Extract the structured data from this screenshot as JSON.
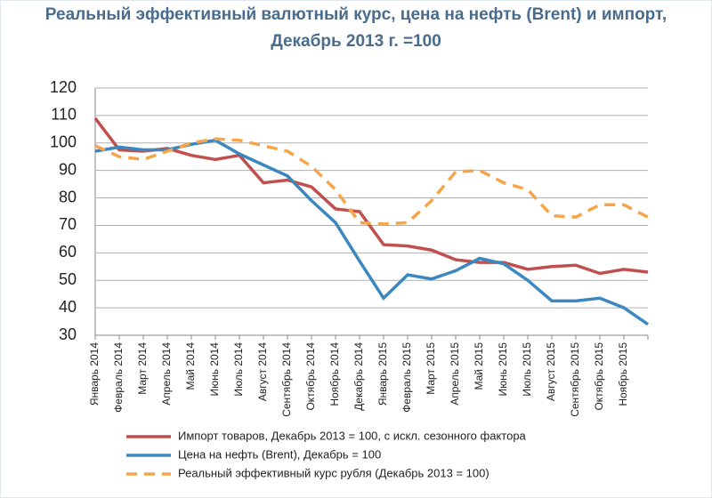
{
  "chart_data": {
    "type": "line",
    "title": "Реальный эффективный валютный курс, цена на нефть (Brent) и импорт,",
    "subtitle": "Декабрь 2013 г. =100",
    "categories": [
      "Январь 2014",
      "Февраль 2014",
      "Март 2014",
      "Апрель 2014",
      "Май 2014",
      "Июнь 2014",
      "Июль 2014",
      "Август 2014",
      "Сентябрь 2014",
      "Октябрь 2014",
      "Ноябрь 2014",
      "Декабрь 2014",
      "Январь 2015",
      "Февраль 2015",
      "Март 2015",
      "Апрель 2015",
      "Май 2015",
      "Июнь 2015",
      "Июль 2015",
      "Август 2015",
      "Сентябрь 2015",
      "Октябрь 2015",
      "Ноябрь 2015",
      null
    ],
    "series": [
      {
        "name": "Импорт товаров, Декабрь 2013 = 100, с искл. сезонного фактора",
        "color": "#c0504d",
        "dashed": false,
        "values": [
          109,
          97.5,
          97,
          98,
          95.5,
          94,
          95.5,
          85.5,
          86.5,
          84,
          76,
          75,
          63,
          62.5,
          61,
          57.5,
          56.5,
          56.5,
          54,
          55,
          55.5,
          52.5,
          54,
          53
        ]
      },
      {
        "name": "Цена на нефть (Brent), Декабрь = 100",
        "color": "#3b87c0",
        "dashed": false,
        "values": [
          97,
          98.5,
          97.5,
          97.5,
          99.5,
          101,
          96,
          92,
          88,
          79,
          71,
          57,
          43.5,
          52,
          50.5,
          53.5,
          58,
          56,
          50,
          42.5,
          42.5,
          43.5,
          40,
          34
        ]
      },
      {
        "name": "Реальный эффективный курс рубля (Декабрь 2013 = 100)",
        "color": "#f7a54a",
        "dashed": true,
        "values": [
          99,
          95,
          94,
          97,
          100,
          101.5,
          101,
          99,
          97,
          91.5,
          83,
          71,
          70.5,
          71,
          79,
          89.5,
          90,
          85.5,
          83,
          73.5,
          73,
          77.5,
          77.5,
          73
        ]
      }
    ],
    "ylim": [
      30,
      120
    ],
    "yticks": [
      30,
      40,
      50,
      60,
      70,
      80,
      90,
      100,
      110,
      120
    ],
    "grid": true
  }
}
